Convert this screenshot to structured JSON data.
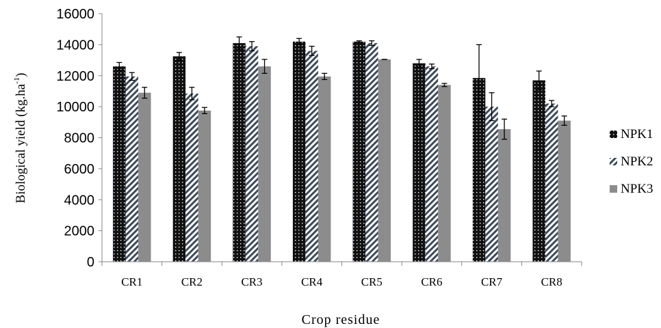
{
  "chart_data": {
    "type": "bar",
    "categories": [
      "CR1",
      "CR2",
      "CR3",
      "CR4",
      "CR5",
      "CR6",
      "CR7",
      "CR8"
    ],
    "series": [
      {
        "name": "NPK1",
        "values": [
          12600,
          13250,
          14100,
          14200,
          14200,
          12800,
          11850,
          11700
        ],
        "errors": [
          250,
          250,
          400,
          200,
          50,
          250,
          2150,
          600
        ]
      },
      {
        "name": "NPK2",
        "values": [
          11950,
          10850,
          13900,
          13600,
          14100,
          12600,
          10000,
          10200
        ],
        "errors": [
          250,
          400,
          300,
          300,
          150,
          150,
          900,
          200
        ]
      },
      {
        "name": "NPK3",
        "values": [
          10900,
          9750,
          12600,
          11950,
          13050,
          11400,
          8550,
          9100
        ],
        "errors": [
          350,
          200,
          450,
          200,
          0,
          100,
          650,
          300
        ]
      }
    ],
    "ylim": [
      0,
      16000
    ],
    "yticks": [
      "0",
      "2000",
      "4000",
      "6000",
      "8000",
      "10000",
      "12000",
      "14000",
      "16000"
    ],
    "xlabel": "Crop residue",
    "ylabel": "Biological yield (kg.ha",
    "ylabel_superscript": "-1",
    "ylabel_suffix": ")",
    "legend_position": "right",
    "grid": false,
    "colors": {
      "NPK1": "#111111",
      "NPK2": "#3c4a5a",
      "NPK3": "#8c8c8c"
    }
  }
}
